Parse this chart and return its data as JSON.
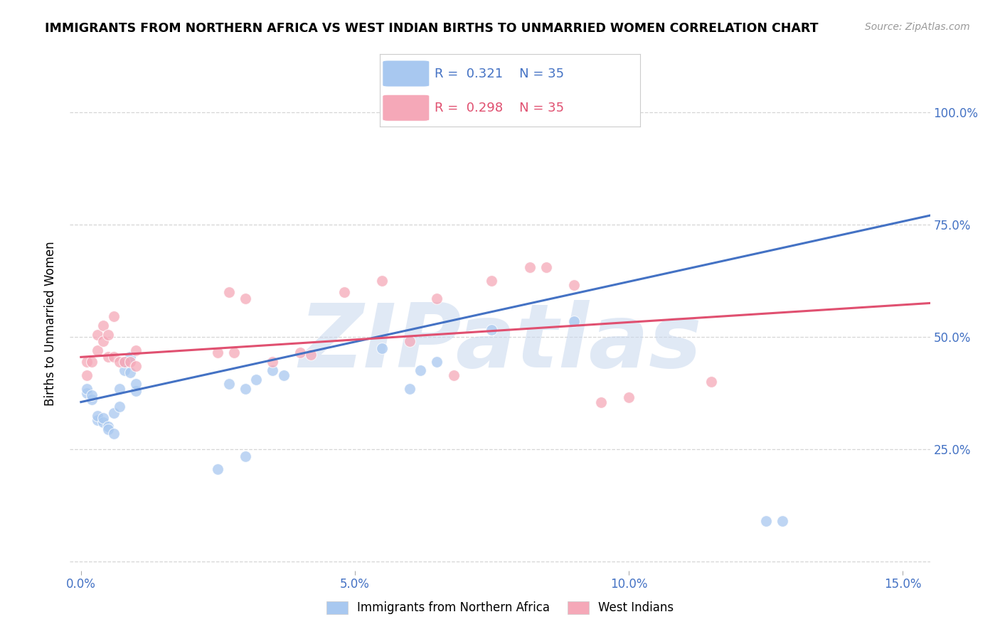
{
  "title": "IMMIGRANTS FROM NORTHERN AFRICA VS WEST INDIAN BIRTHS TO UNMARRIED WOMEN CORRELATION CHART",
  "source": "Source: ZipAtlas.com",
  "ylabel": "Births to Unmarried Women",
  "x_ticks": [
    0.0,
    0.05,
    0.1,
    0.15
  ],
  "x_tick_labels": [
    "0.0%",
    "5.0%",
    "10.0%",
    "15.0%"
  ],
  "y_ticks": [
    0.0,
    0.25,
    0.5,
    0.75,
    1.0
  ],
  "y_tick_labels": [
    "",
    "25.0%",
    "50.0%",
    "75.0%",
    "100.0%"
  ],
  "xlim": [
    -0.002,
    0.155
  ],
  "ylim": [
    -0.02,
    1.08
  ],
  "blue_R": 0.321,
  "blue_N": 35,
  "pink_R": 0.298,
  "pink_N": 35,
  "blue_color": "#a8c8f0",
  "pink_color": "#f5a8b8",
  "blue_line_color": "#4472c4",
  "pink_line_color": "#e05070",
  "axis_tick_color": "#4472c4",
  "watermark": "ZIPatlas",
  "watermark_color": "#c8d8ee",
  "legend_label_blue": "Immigrants from Northern Africa",
  "legend_label_pink": "West Indians",
  "blue_scatter_x": [
    0.001,
    0.001,
    0.002,
    0.002,
    0.003,
    0.003,
    0.004,
    0.004,
    0.005,
    0.005,
    0.006,
    0.006,
    0.007,
    0.007,
    0.008,
    0.008,
    0.009,
    0.009,
    0.01,
    0.01,
    0.025,
    0.027,
    0.03,
    0.032,
    0.035,
    0.037,
    0.055,
    0.06,
    0.062,
    0.065,
    0.075,
    0.09,
    0.03,
    0.125,
    0.128
  ],
  "blue_scatter_y": [
    0.375,
    0.385,
    0.36,
    0.37,
    0.315,
    0.325,
    0.31,
    0.32,
    0.3,
    0.295,
    0.285,
    0.33,
    0.345,
    0.385,
    0.425,
    0.445,
    0.455,
    0.42,
    0.38,
    0.395,
    0.205,
    0.395,
    0.385,
    0.405,
    0.425,
    0.415,
    0.475,
    0.385,
    0.425,
    0.445,
    0.515,
    0.535,
    0.235,
    0.09,
    0.09
  ],
  "pink_scatter_x": [
    0.001,
    0.001,
    0.002,
    0.003,
    0.003,
    0.004,
    0.004,
    0.005,
    0.005,
    0.006,
    0.006,
    0.007,
    0.008,
    0.009,
    0.01,
    0.01,
    0.025,
    0.027,
    0.028,
    0.03,
    0.035,
    0.04,
    0.042,
    0.048,
    0.055,
    0.06,
    0.065,
    0.068,
    0.075,
    0.082,
    0.085,
    0.09,
    0.095,
    0.1,
    0.115
  ],
  "pink_scatter_y": [
    0.415,
    0.445,
    0.445,
    0.47,
    0.505,
    0.49,
    0.525,
    0.505,
    0.455,
    0.455,
    0.545,
    0.445,
    0.445,
    0.445,
    0.47,
    0.435,
    0.465,
    0.6,
    0.465,
    0.585,
    0.445,
    0.465,
    0.46,
    0.6,
    0.625,
    0.49,
    0.585,
    0.415,
    0.625,
    0.655,
    0.655,
    0.615,
    0.355,
    0.365,
    0.4
  ],
  "blue_line_x": [
    0.0,
    0.155
  ],
  "blue_line_y": [
    0.355,
    0.77
  ],
  "pink_line_x": [
    0.0,
    0.155
  ],
  "pink_line_y": [
    0.455,
    0.575
  ],
  "marker_size": 130
}
